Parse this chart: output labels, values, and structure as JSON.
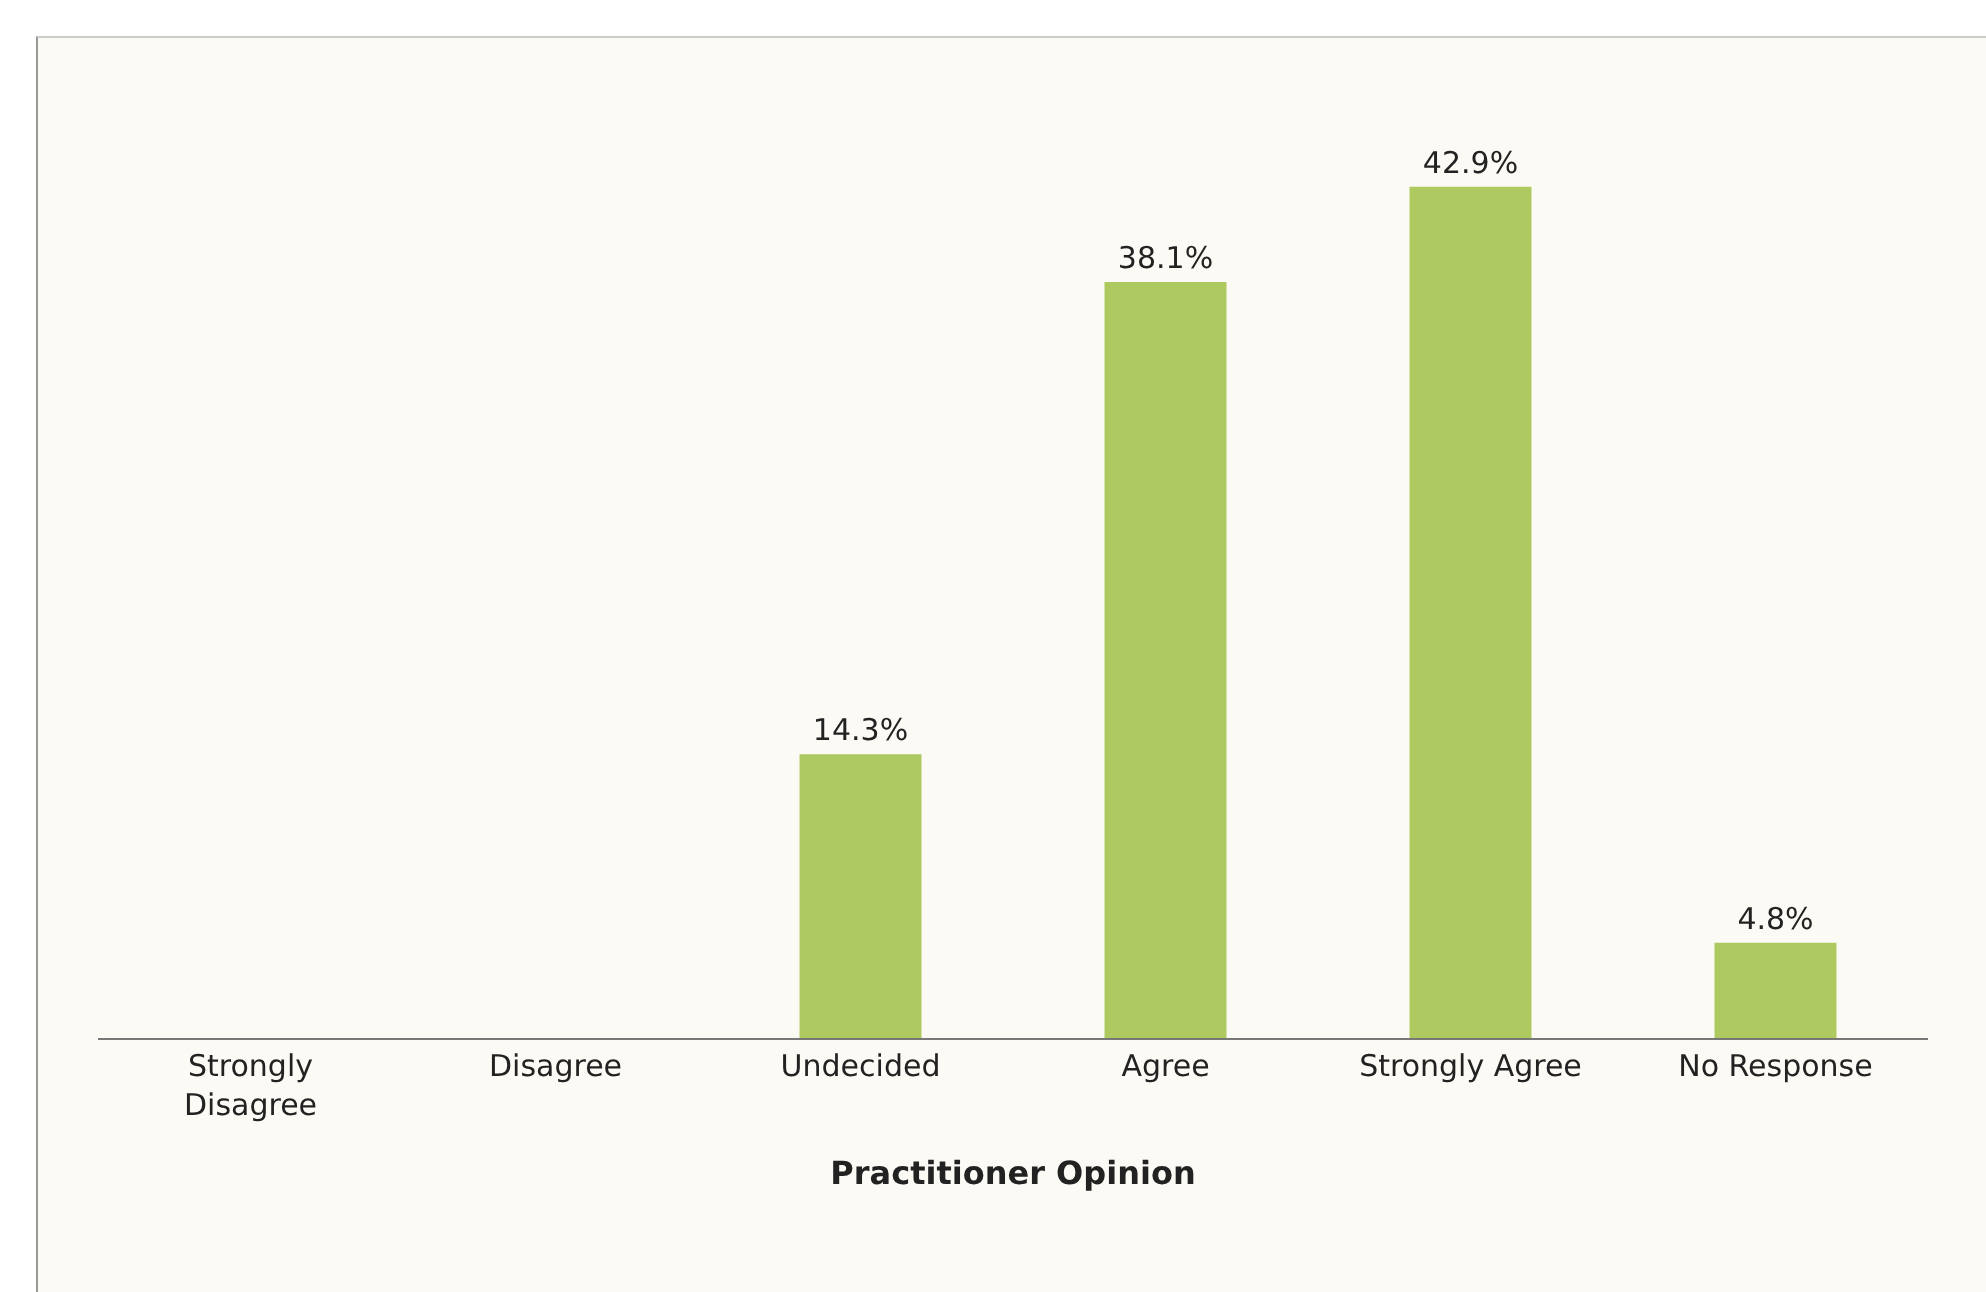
{
  "chart_data": {
    "type": "bar",
    "xlabel": "Practitioner Opinion",
    "categories": [
      "Strongly Disagree",
      "Disagree",
      "Undecided",
      "Agree",
      "Strongly Agree",
      "No Response"
    ],
    "values": [
      0,
      0,
      14.3,
      38.1,
      42.9,
      4.8
    ],
    "value_labels": [
      null,
      null,
      "14.3%",
      "38.1%",
      "42.9%",
      "4.8%"
    ],
    "color": "#adc960"
  }
}
